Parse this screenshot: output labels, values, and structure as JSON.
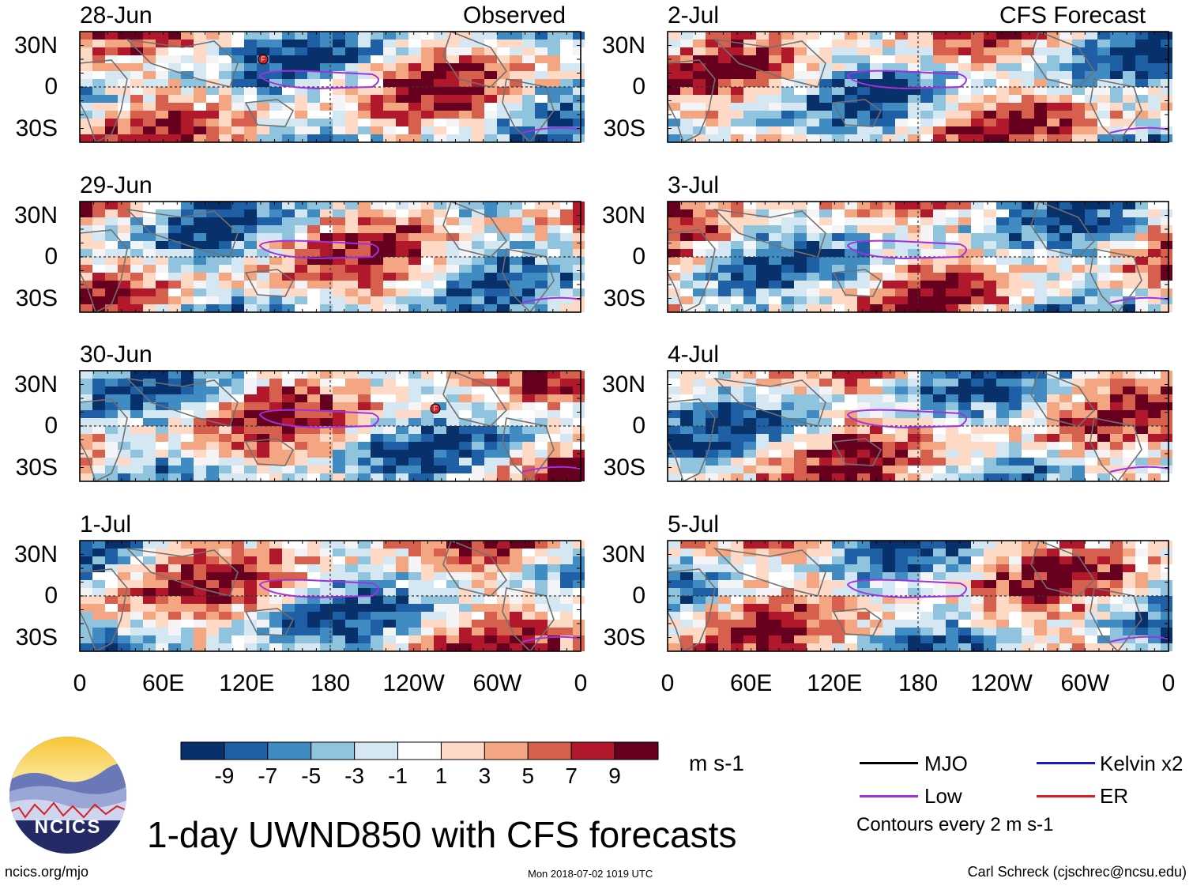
{
  "header": {
    "left_title": "Observed",
    "right_title": "CFS Forecast"
  },
  "chart_data": {
    "type": "heatmap",
    "title": "1-day UWND850 with CFS forecasts",
    "variable": "850-hPa zonal wind anomaly",
    "units": "m s-1",
    "lat_range": [
      -40,
      40
    ],
    "lon_range": [
      0,
      360
    ],
    "y_ticks": [
      "30N",
      "0",
      "30S"
    ],
    "x_ticks": [
      "0",
      "60E",
      "120E",
      "180",
      "120W",
      "60W",
      "0"
    ],
    "panels": [
      {
        "date": "28-Jun",
        "column": "Observed",
        "marker": "F"
      },
      {
        "date": "29-Jun",
        "column": "Observed"
      },
      {
        "date": "30-Jun",
        "column": "Observed",
        "marker": "F"
      },
      {
        "date": "1-Jul",
        "column": "Observed"
      },
      {
        "date": "2-Jul",
        "column": "CFS Forecast"
      },
      {
        "date": "3-Jul",
        "column": "CFS Forecast"
      },
      {
        "date": "4-Jul",
        "column": "CFS Forecast"
      },
      {
        "date": "5-Jul",
        "column": "CFS Forecast"
      }
    ],
    "colorbar": {
      "ticks": [
        "-9",
        "-7",
        "-5",
        "-3",
        "-1",
        "1",
        "3",
        "5",
        "7",
        "9"
      ],
      "colors": [
        "#08306b",
        "#1f5fa6",
        "#3f8bc2",
        "#8fc3de",
        "#d4e7f3",
        "#ffffff",
        "#fdd9c6",
        "#f4a582",
        "#d6604d",
        "#b2182b",
        "#67001f"
      ]
    },
    "legend": [
      {
        "label": "MJO",
        "color": "#000000"
      },
      {
        "label": "Kelvin x2",
        "color": "#1a1acc"
      },
      {
        "label": "Low",
        "color": "#a22fe0"
      },
      {
        "label": "ER",
        "color": "#d42020"
      }
    ],
    "contour_note": "Contours every 2 m s-1"
  },
  "footer": {
    "left": "ncics.org/mjo",
    "middle": "Mon 2018-07-02 1019 UTC",
    "right": "Carl Schreck (cjschrec@ncsu.edu)"
  },
  "logo": {
    "text": "NCICS"
  }
}
